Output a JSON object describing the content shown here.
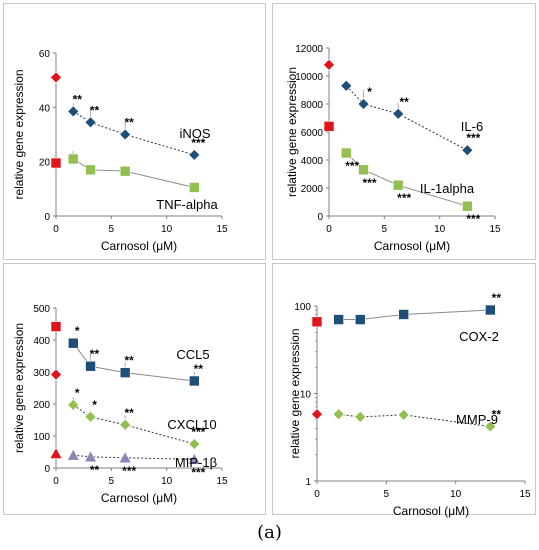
{
  "figure": {
    "caption": "(a)"
  },
  "colors": {
    "red": "#e0141b",
    "blue": "#1f4e79",
    "green": "#92c050",
    "purple": "#8e84b8",
    "panel_border": "#c8c8c8",
    "axis": "#808080"
  },
  "chart_data": [
    {
      "type": "line",
      "xlabel": "Carnosol (μM)",
      "ylabel": "relative gene expression",
      "xlim": [
        0,
        15
      ],
      "xticks": [
        0,
        5,
        10,
        15
      ],
      "ylim": [
        0,
        60
      ],
      "yticks": [
        0,
        20,
        40,
        60
      ],
      "scale": "linear",
      "grid": false,
      "series": [
        {
          "name": "iNOS",
          "marker": "diamond",
          "color": "#1f4e79",
          "dash": true,
          "x": [
            1.56,
            3.12,
            6.25,
            12.5
          ],
          "y": [
            38.5,
            34.5,
            30,
            22.5
          ],
          "err": [
            3,
            5,
            5,
            2
          ],
          "sig": [
            "**",
            "**",
            "**",
            "***"
          ]
        },
        {
          "name": "TNF-alpha",
          "marker": "square",
          "color": "#92c050",
          "dash": false,
          "x": [
            1.56,
            3.12,
            6.25,
            12.5
          ],
          "y": [
            21,
            17,
            16.5,
            10.5
          ],
          "err": [
            3,
            2,
            0,
            0
          ],
          "sig": [
            "",
            "",
            "",
            ""
          ]
        }
      ],
      "controls": [
        {
          "marker": "diamond",
          "color": "#e0141b",
          "x": 0,
          "y": 51
        },
        {
          "marker": "square",
          "color": "#e0141b",
          "x": 0,
          "y": 19.5
        }
      ]
    },
    {
      "type": "line",
      "xlabel": "Carnosol (μM)",
      "ylabel": "relative gene expression",
      "xlim": [
        0,
        15
      ],
      "xticks": [
        0,
        5,
        10,
        15
      ],
      "ylim": [
        0,
        12000
      ],
      "yticks": [
        0,
        2000,
        4000,
        6000,
        8000,
        10000,
        12000
      ],
      "scale": "linear",
      "grid": false,
      "series": [
        {
          "name": "IL-6",
          "marker": "diamond",
          "color": "#1f4e79",
          "dash": true,
          "x": [
            1.56,
            3.12,
            6.25,
            12.5
          ],
          "y": [
            9300,
            8000,
            7300,
            4700
          ],
          "err": [
            0,
            1000,
            800,
            0
          ],
          "sig": [
            "",
            "*",
            "**",
            "***"
          ]
        },
        {
          "name": "IL-1alpha",
          "marker": "square",
          "color": "#92c050",
          "dash": false,
          "x": [
            1.56,
            3.12,
            6.25,
            12.5
          ],
          "y": [
            4500,
            3300,
            2200,
            700
          ],
          "err": [
            0,
            300,
            200,
            200
          ],
          "sig": [
            "***",
            "***",
            "***",
            "***"
          ]
        }
      ],
      "controls": [
        {
          "marker": "diamond",
          "color": "#e0141b",
          "x": 0,
          "y": 10800
        },
        {
          "marker": "square",
          "color": "#e0141b",
          "x": 0,
          "y": 6400
        }
      ]
    },
    {
      "type": "line",
      "xlabel": "Carnosol (μM)",
      "ylabel": "relative gene expression",
      "xlim": [
        0,
        15
      ],
      "xticks": [
        0,
        5,
        10,
        15
      ],
      "ylim": [
        0,
        500
      ],
      "yticks": [
        0,
        100,
        200,
        300,
        400,
        500
      ],
      "scale": "linear",
      "grid": false,
      "series": [
        {
          "name": "CCL5",
          "marker": "square",
          "color": "#1f4e79",
          "dash": false,
          "x": [
            1.56,
            3.12,
            6.25,
            12.5
          ],
          "y": [
            390,
            318,
            298,
            272
          ],
          "err": [
            0,
            50,
            30,
            30
          ],
          "sig": [
            "*",
            "**",
            "**",
            "**"
          ]
        },
        {
          "name": "CXCL10",
          "marker": "diamond",
          "color": "#92c050",
          "dash": true,
          "x": [
            1.56,
            3.12,
            6.25,
            12.5
          ],
          "y": [
            197,
            160,
            135,
            75
          ],
          "err": [
            25,
            20,
            30,
            10
          ],
          "sig": [
            "*",
            "*",
            "**",
            "***"
          ]
        },
        {
          "name": "MIP-1β",
          "marker": "triangle",
          "color": "#8e84b8",
          "dash": true,
          "x": [
            1.56,
            3.12,
            6.25,
            12.5
          ],
          "y": [
            40,
            35,
            32,
            27
          ],
          "err": [
            0,
            0,
            0,
            0
          ],
          "sig": [
            "",
            "**",
            "***",
            "***"
          ]
        }
      ],
      "controls": [
        {
          "marker": "square",
          "color": "#e0141b",
          "x": 0,
          "y": 442
        },
        {
          "marker": "diamond",
          "color": "#e0141b",
          "x": 0,
          "y": 292
        },
        {
          "marker": "triangle",
          "color": "#e0141b",
          "x": 0,
          "y": 45
        }
      ]
    },
    {
      "type": "line",
      "xlabel": "Carnosol (μM)",
      "ylabel": "relative gene expression",
      "xlim": [
        0,
        15
      ],
      "xticks": [
        0,
        5,
        10,
        15
      ],
      "ylim": [
        1,
        100
      ],
      "yticks": [
        1,
        10,
        100
      ],
      "scale": "log",
      "grid": false,
      "series": [
        {
          "name": "COX-2",
          "marker": "square",
          "color": "#1f4e79",
          "dash": false,
          "x": [
            1.56,
            3.12,
            6.25,
            12.5
          ],
          "y": [
            70,
            70,
            80,
            90
          ],
          "err": [
            0,
            0,
            0,
            0
          ],
          "sig": [
            "",
            "",
            "",
            "**"
          ]
        },
        {
          "name": "MMP-9",
          "marker": "diamond",
          "color": "#92c050",
          "dash": true,
          "x": [
            1.56,
            3.12,
            6.25,
            12.5
          ],
          "y": [
            5.8,
            5.4,
            5.7,
            4.2
          ],
          "err": [
            0,
            0,
            0,
            0
          ],
          "sig": [
            "",
            "",
            "",
            "**"
          ]
        }
      ],
      "controls": [
        {
          "marker": "square",
          "color": "#e0141b",
          "x": 0,
          "y": 66
        },
        {
          "marker": "diamond",
          "color": "#e0141b",
          "x": 0,
          "y": 5.8
        }
      ]
    }
  ]
}
